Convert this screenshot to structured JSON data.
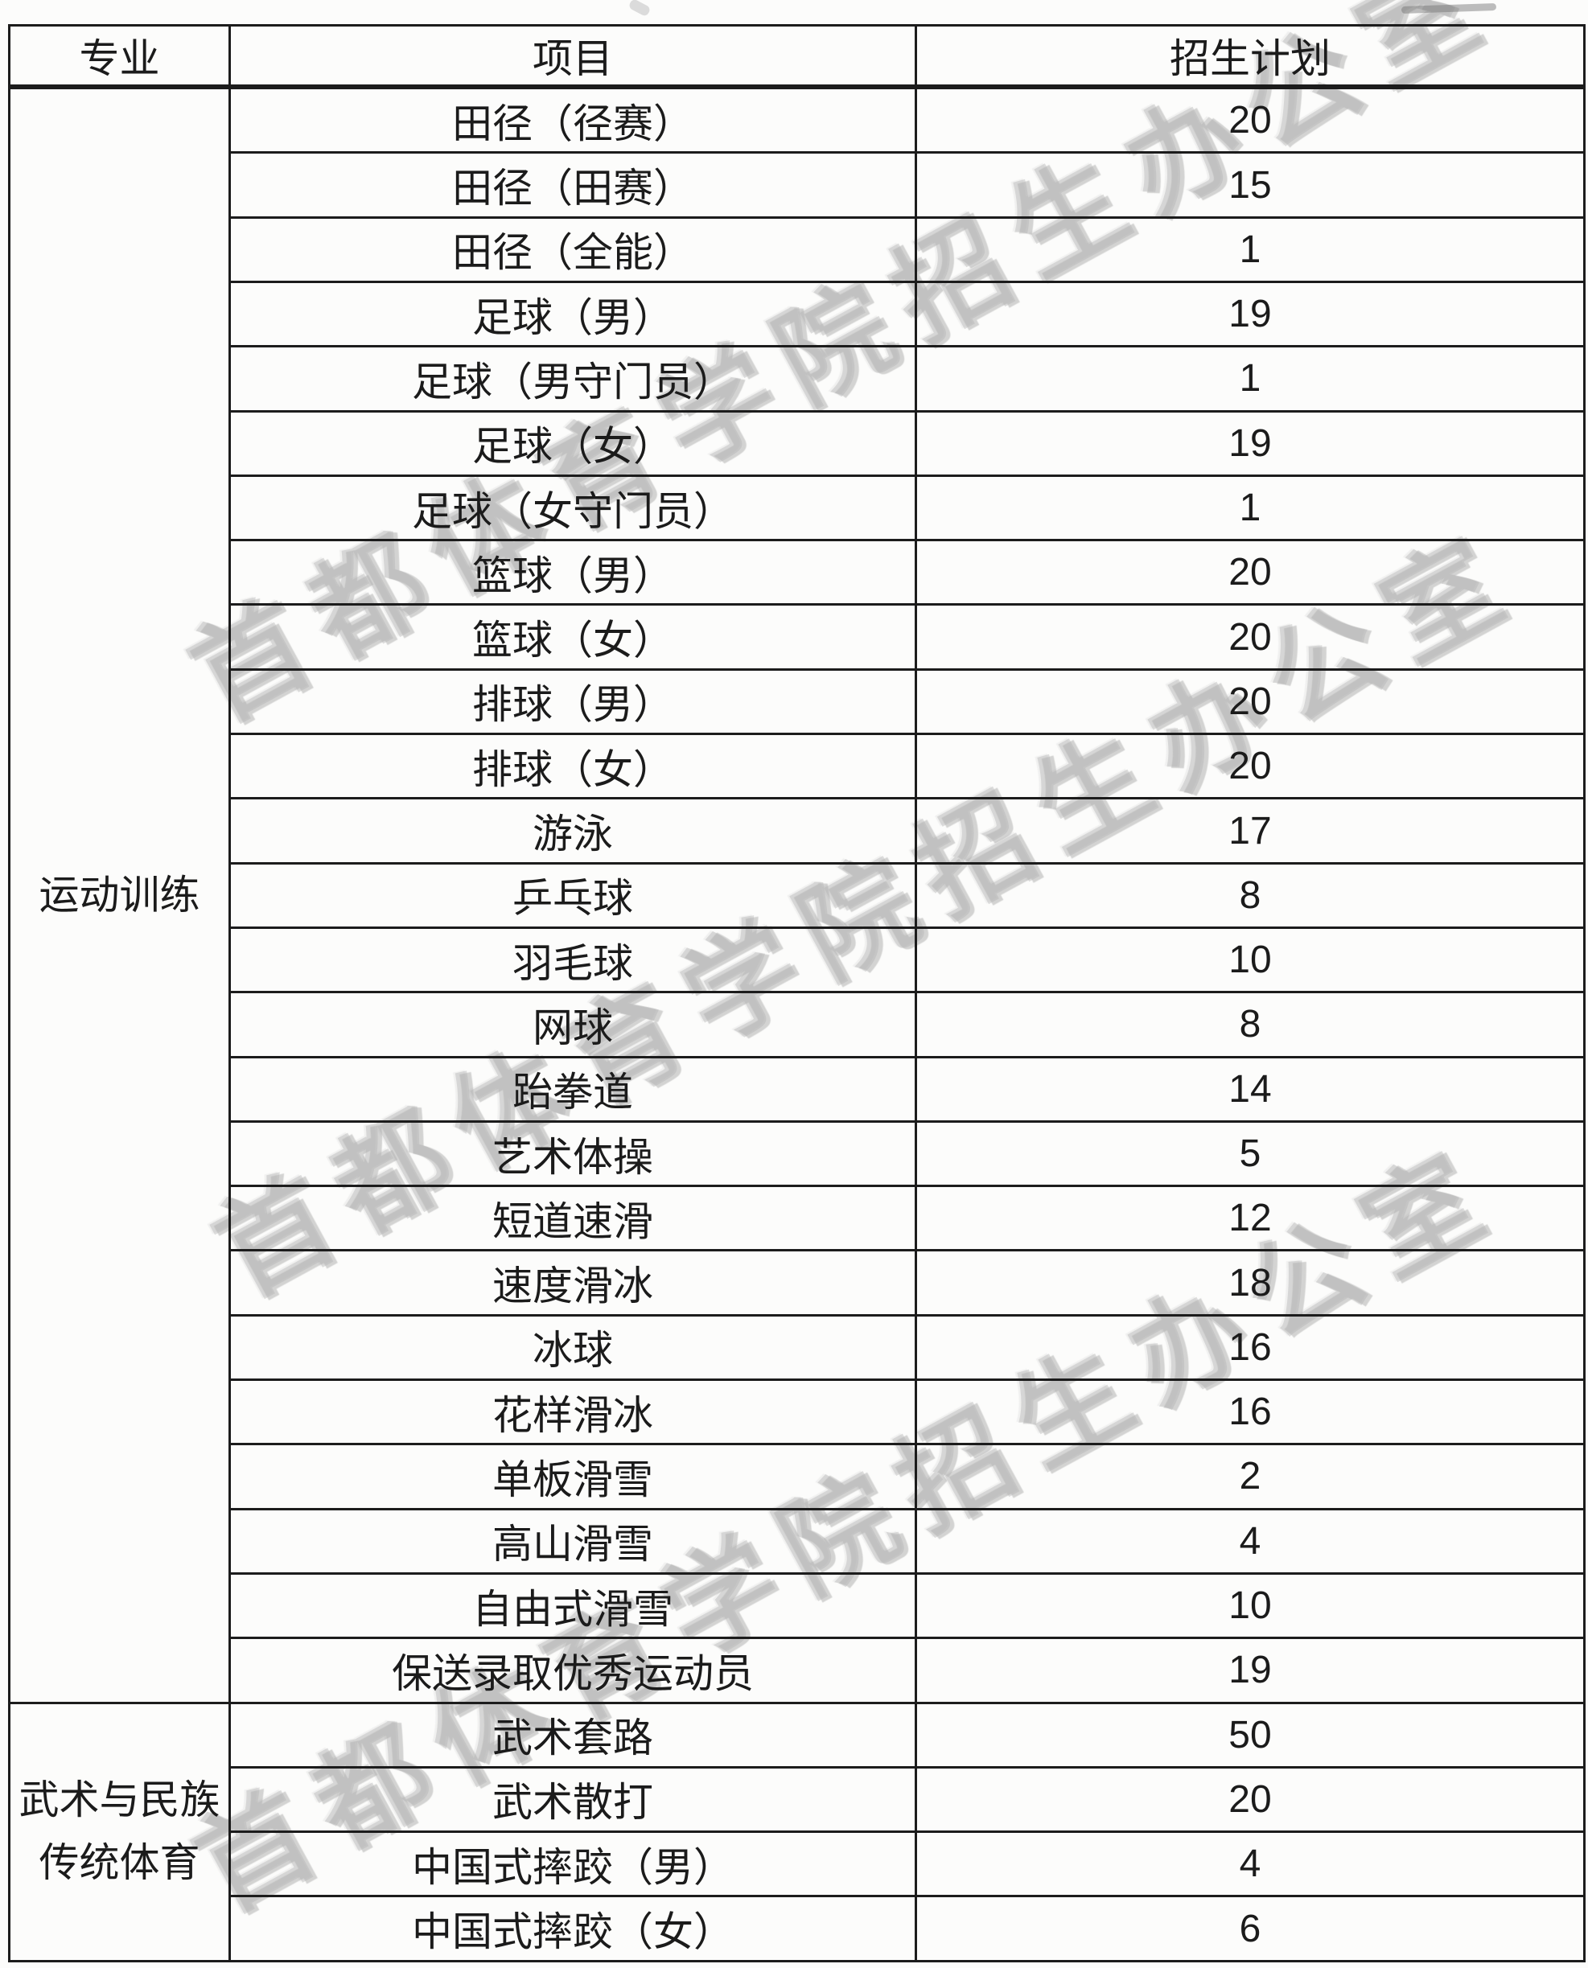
{
  "watermark": {
    "text": "首都体育学院招生办公室"
  },
  "table": {
    "headers": [
      "专业",
      "项目",
      "招生计划"
    ],
    "sections": [
      {
        "major": "运动训练",
        "rows": [
          {
            "item": "田径（径赛）",
            "plan": "20"
          },
          {
            "item": "田径（田赛）",
            "plan": "15"
          },
          {
            "item": "田径（全能）",
            "plan": "1"
          },
          {
            "item": "足球（男）",
            "plan": "19"
          },
          {
            "item": "足球（男守门员）",
            "plan": "1"
          },
          {
            "item": "足球（女）",
            "plan": "19"
          },
          {
            "item": "足球（女守门员）",
            "plan": "1"
          },
          {
            "item": "篮球（男）",
            "plan": "20"
          },
          {
            "item": "篮球（女）",
            "plan": "20"
          },
          {
            "item": "排球（男）",
            "plan": "20"
          },
          {
            "item": "排球（女）",
            "plan": "20"
          },
          {
            "item": "游泳",
            "plan": "17"
          },
          {
            "item": "乒乓球",
            "plan": "8"
          },
          {
            "item": "羽毛球",
            "plan": "10"
          },
          {
            "item": "网球",
            "plan": "8"
          },
          {
            "item": "跆拳道",
            "plan": "14"
          },
          {
            "item": "艺术体操",
            "plan": "5"
          },
          {
            "item": "短道速滑",
            "plan": "12"
          },
          {
            "item": "速度滑冰",
            "plan": "18"
          },
          {
            "item": "冰球",
            "plan": "16"
          },
          {
            "item": "花样滑冰",
            "plan": "16"
          },
          {
            "item": "单板滑雪",
            "plan": "2"
          },
          {
            "item": "高山滑雪",
            "plan": "4"
          },
          {
            "item": "自由式滑雪",
            "plan": "10"
          },
          {
            "item": "保送录取优秀运动员",
            "plan": "19"
          }
        ]
      },
      {
        "major": "武术与民族传统体育",
        "rows": [
          {
            "item": "武术套路",
            "plan": "50"
          },
          {
            "item": "武术散打",
            "plan": "20"
          },
          {
            "item": "中国式摔跤（男）",
            "plan": "4"
          },
          {
            "item": "中国式摔跤（女）",
            "plan": "6"
          }
        ]
      }
    ]
  }
}
